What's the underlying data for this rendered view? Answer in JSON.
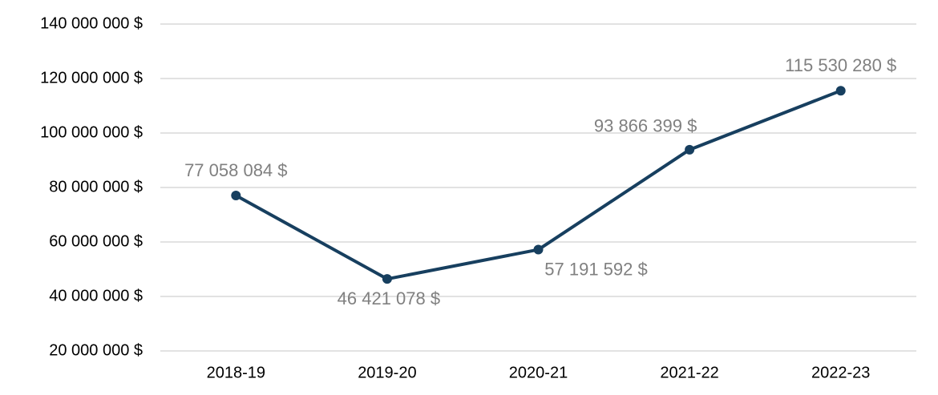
{
  "chart_data": {
    "type": "line",
    "categories": [
      "2018-19",
      "2019-20",
      "2020-21",
      "2021-22",
      "2022-23"
    ],
    "series": [
      {
        "color": "#173f5f",
        "values": [
          77058084,
          46421078,
          57191592,
          93866399,
          115530280
        ],
        "value_labels": [
          "77 058 084  $",
          "46 421 078  $",
          "57 191 592  $",
          "93 866 399  $",
          "115 530 280  $"
        ]
      }
    ],
    "ylim": [
      20000000,
      140000000
    ],
    "yticks": [
      {
        "value": 20000000,
        "label": "20 000 000  $"
      },
      {
        "value": 40000000,
        "label": "40 000 000  $"
      },
      {
        "value": 60000000,
        "label": "60 000 000  $"
      },
      {
        "value": 80000000,
        "label": "80 000 000  $"
      },
      {
        "value": 100000000,
        "label": "100 000 000  $"
      },
      {
        "value": 120000000,
        "label": "120 000 000  $"
      },
      {
        "value": 140000000,
        "label": "140 000 000  $"
      }
    ],
    "grid": true
  }
}
